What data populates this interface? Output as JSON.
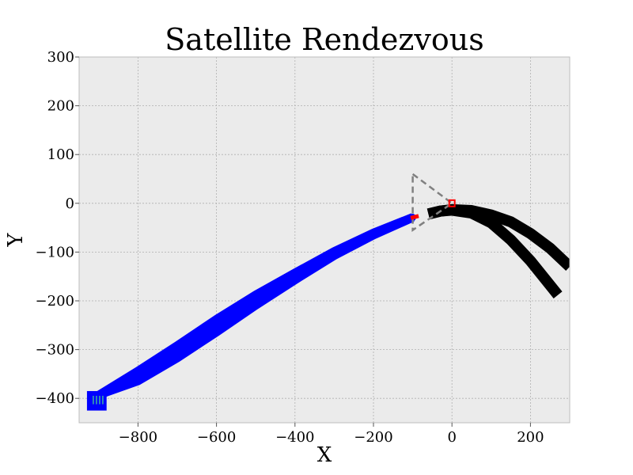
{
  "chart_data": {
    "type": "line",
    "title": "Satellite Rendezvous",
    "xlabel": "X",
    "ylabel": "Y",
    "xlim": [
      -950,
      300
    ],
    "ylim": [
      -450,
      300
    ],
    "grid": true,
    "xticks": [
      -800,
      -600,
      -400,
      -200,
      0,
      200
    ],
    "yticks": [
      -400,
      -300,
      -200,
      -100,
      0,
      100,
      200,
      300
    ],
    "xtick_labels": [
      "−800",
      "−600",
      "−400",
      "−200",
      "0",
      "200"
    ],
    "ytick_labels": [
      "−400",
      "−300",
      "−200",
      "−100",
      "0",
      "100",
      "200",
      "300"
    ],
    "colors": {
      "background": "#ebebeb",
      "approach": "#0000ff",
      "passive": "#000000",
      "target": "#ff0000",
      "corridor": "#808080",
      "start": "#3cb4a0"
    },
    "series": [
      {
        "role": "approach",
        "x": [
          -905,
          -800,
          -700,
          -600,
          -500,
          -400,
          -300,
          -200,
          -100
        ],
        "y": [
          -395,
          -343,
          -291,
          -237,
          -187,
          -142,
          -98,
          -60,
          -28
        ]
      },
      {
        "role": "approach",
        "x": [
          -905,
          -800,
          -700,
          -600,
          -500,
          -400,
          -300,
          -200,
          -100
        ],
        "y": [
          -395,
          -365,
          -318,
          -265,
          -210,
          -158,
          -108,
          -66,
          -30
        ]
      },
      {
        "role": "passive",
        "x": [
          -60,
          -30,
          0,
          50,
          100,
          150,
          200,
          250,
          300
        ],
        "y": [
          -22,
          -16,
          -13,
          -15,
          -24,
          -38,
          -62,
          -92,
          -130
        ]
      },
      {
        "role": "passive",
        "x": [
          -60,
          -30,
          0,
          50,
          100,
          150,
          200,
          240,
          270
        ],
        "y": [
          -22,
          -16,
          -14,
          -20,
          -40,
          -75,
          -118,
          -158,
          -188
        ]
      }
    ],
    "target": {
      "x": 0,
      "y": 0
    },
    "corridor": {
      "x": [
        -100,
        0,
        -100
      ],
      "y": [
        60,
        0,
        -55
      ]
    },
    "start_box": {
      "x": [
        -930,
        -880
      ],
      "y": [
        -425,
        -385
      ]
    }
  }
}
